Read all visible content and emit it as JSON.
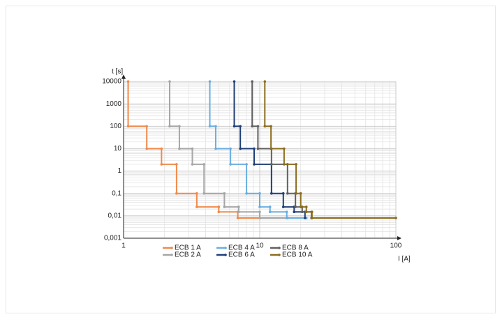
{
  "chart_data": {
    "type": "step-line",
    "xlabel": "I [A]",
    "ylabel": "t [s]",
    "xscale": "log",
    "yscale": "log",
    "grid": true,
    "minor_grid": true,
    "xlim": [
      1,
      100
    ],
    "xticks": [
      1,
      10,
      100
    ],
    "ylim": [
      0.001,
      10000
    ],
    "yticks": [
      {
        "value": 0.001,
        "label": "0,001"
      },
      {
        "value": 0.01,
        "label": "0,01"
      },
      {
        "value": 0.1,
        "label": "0,1"
      },
      1,
      10,
      100,
      1000,
      10000
    ],
    "series": [
      {
        "name": "ECB 1 A",
        "color": "#f08a4b",
        "x": [
          1.08,
          1.08,
          1.48,
          1.48,
          1.9,
          1.9,
          2.45,
          2.45,
          3.45,
          3.45,
          5,
          5,
          6.9,
          6.9,
          10
        ],
        "values": [
          10000,
          100,
          100,
          10,
          10,
          2,
          2,
          0.1,
          0.1,
          0.025,
          0.025,
          0.015,
          0.015,
          0.008,
          0.008
        ]
      },
      {
        "name": "ECB 2 A",
        "color": "#a6a6a6",
        "x": [
          2.18,
          2.18,
          2.57,
          2.57,
          3.2,
          3.2,
          3.9,
          3.9,
          5.5,
          5.5,
          7,
          7,
          10,
          10,
          16
        ],
        "values": [
          10000,
          100,
          100,
          10,
          10,
          2,
          2,
          0.1,
          0.1,
          0.025,
          0.025,
          0.015,
          0.015,
          0.008,
          0.008
        ]
      },
      {
        "name": "ECB 4 A",
        "color": "#6aaee0",
        "x": [
          4.3,
          4.3,
          4.75,
          4.75,
          6.1,
          6.1,
          8,
          8,
          10,
          10,
          11.9,
          11.9,
          15.8,
          15.8,
          22
        ],
        "values": [
          10000,
          100,
          100,
          10,
          10,
          2,
          2,
          0.1,
          0.1,
          0.025,
          0.025,
          0.015,
          0.015,
          0.008,
          0.008
        ]
      },
      {
        "name": "ECB 6 A",
        "color": "#1f3f77",
        "x": [
          6.5,
          6.5,
          7.2,
          7.2,
          9.1,
          9.1,
          12.2,
          12.2,
          14.9,
          14.9,
          17.9,
          17.9,
          21.5,
          21.5
        ],
        "values": [
          10000,
          100,
          100,
          10,
          10,
          2,
          2,
          0.1,
          0.1,
          0.025,
          0.025,
          0.015,
          0.015,
          0.008
        ]
      },
      {
        "name": "ECB 8 A",
        "color": "#606060",
        "x": [
          8.8,
          8.8,
          9.7,
          9.7,
          12.2,
          12.2,
          16,
          16,
          18.3,
          18.3,
          20.5,
          20.5,
          24,
          24
        ],
        "values": [
          10000,
          100,
          100,
          10,
          10,
          2,
          2,
          0.1,
          0.1,
          0.025,
          0.025,
          0.015,
          0.015,
          0.008
        ]
      },
      {
        "name": "ECB 10 A",
        "color": "#8b6d1e",
        "x": [
          10.9,
          10.9,
          12.1,
          12.1,
          15.1,
          15.1,
          18.5,
          18.5,
          20,
          20,
          22,
          22,
          24.2,
          24.2,
          100
        ],
        "values": [
          10000,
          100,
          100,
          10,
          10,
          2,
          2,
          0.1,
          0.1,
          0.025,
          0.025,
          0.015,
          0.015,
          0.008,
          0.008
        ]
      }
    ]
  }
}
